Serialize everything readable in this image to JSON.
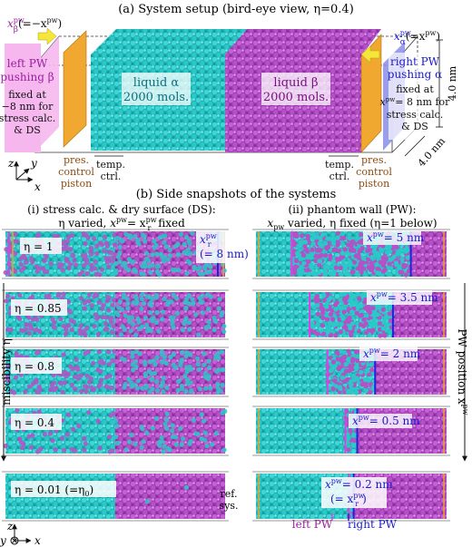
{
  "part_a": {
    "title": "(a) System setup (bird-eye view, η=0.4)",
    "x_beta_label": "x",
    "x_beta_sup": "pw",
    "x_beta_sub": "β",
    "x_beta_eq": "(=−x",
    "x_beta_eq_sup": "pw",
    "x_beta_close": ")",
    "x_alpha_label": "x",
    "x_alpha_sup": "pw",
    "x_alpha_sub": "α",
    "x_alpha_eq": "(=x",
    "x_alpha_eq_sup": "pw",
    "x_alpha_close": ")",
    "left_pw": [
      "left PW",
      "pushing β"
    ],
    "left_pw_fixed": [
      "fixed at",
      "−8 nm for",
      "stress calc.",
      "& DS"
    ],
    "liquid_alpha": [
      "liquid α",
      "2000 mols."
    ],
    "liquid_beta": [
      "liquid β",
      "2000 mols."
    ],
    "right_pw": [
      "right PW",
      "pushing α"
    ],
    "right_pw_fixed": [
      "fixed at",
      "x",
      "= 8 nm for",
      "stress calc.",
      "& DS"
    ],
    "right_pw_sup": "pw",
    "pres_control_left": [
      "pres.",
      "control",
      "piston"
    ],
    "temp_ctrl_left": [
      "temp.",
      "ctrl."
    ],
    "temp_ctrl_right": [
      "temp.",
      "ctrl."
    ],
    "pres_control_right": [
      "pres.",
      "control",
      "piston"
    ],
    "dim_z": "4.0 nm",
    "dim_y": "4.0 nm",
    "axis_z": "z",
    "axis_y": "y",
    "axis_x": "x"
  },
  "part_b": {
    "title": "(b) Side snapshots of the systems",
    "col_i_title": "(i) stress calc. & dry surface (DS):",
    "col_i_sub_prefix": "η varied, ",
    "col_i_sub_x": "x",
    "col_i_sub_sup": "pw",
    "col_i_sub_eq": "= x",
    "col_i_sub_sup2": "pw",
    "col_i_sub_sub2": "r",
    "col_i_sub_suffix": " fixed",
    "col_ii_title": "(ii) phantom wall (PW):",
    "col_ii_sub_x": "x",
    "col_ii_sub_sub": "pw",
    "col_ii_sub_rest": " varied, η fixed (η=1 below)",
    "eta_labels": [
      "η = 1",
      "η = 0.85",
      "η = 0.8",
      "η = 0.4",
      "η = 0.01 (=η"
    ],
    "eta_last_sub": "0",
    "eta_last_close": ")",
    "xr_label": "x",
    "xr_sup": "pw",
    "xr_sub": "r",
    "xr_eq": "(= 8 nm)",
    "pw_labels": [
      "= 5 nm",
      "= 3.5 nm",
      "= 2 nm",
      "= 0.5 nm",
      "= 0.2 nm"
    ],
    "pw_label_x": "x",
    "pw_label_sup": "pw",
    "pw_last_extra": "(= x",
    "pw_last_extra_sub": "pw",
    "pw_last_extra_sub2": "r",
    "pw_last_extra_close": ")",
    "ref_sys": [
      "ref.",
      "sys."
    ],
    "miscibility": "miscibility η",
    "pw_position": "PW position x",
    "pw_position_sup": "pw",
    "left_pw": "left PW",
    "right_pw": "right PW",
    "axis_z": "z",
    "axis_y": "y",
    "axis_x": "x"
  },
  "colors": {
    "cyan": "#27c4c4",
    "magenta": "#b94fc8",
    "orange": "#f0a020",
    "pink": "#f4a4e8",
    "blue": "#2222dd",
    "pink_line": "#e040e0",
    "liquid_alpha_text": "#008a9a",
    "liquid_beta_text": "#9a1ea0",
    "pw_text": "#9a1ea0",
    "brown_text": "#8a4a10",
    "blue_text": "#1a1acc"
  },
  "mix": {
    "etas": [
      1,
      0.85,
      0.8,
      0.4,
      0.01
    ],
    "pw_positions_nm": [
      5,
      3.5,
      2,
      0.5,
      0.2
    ]
  }
}
